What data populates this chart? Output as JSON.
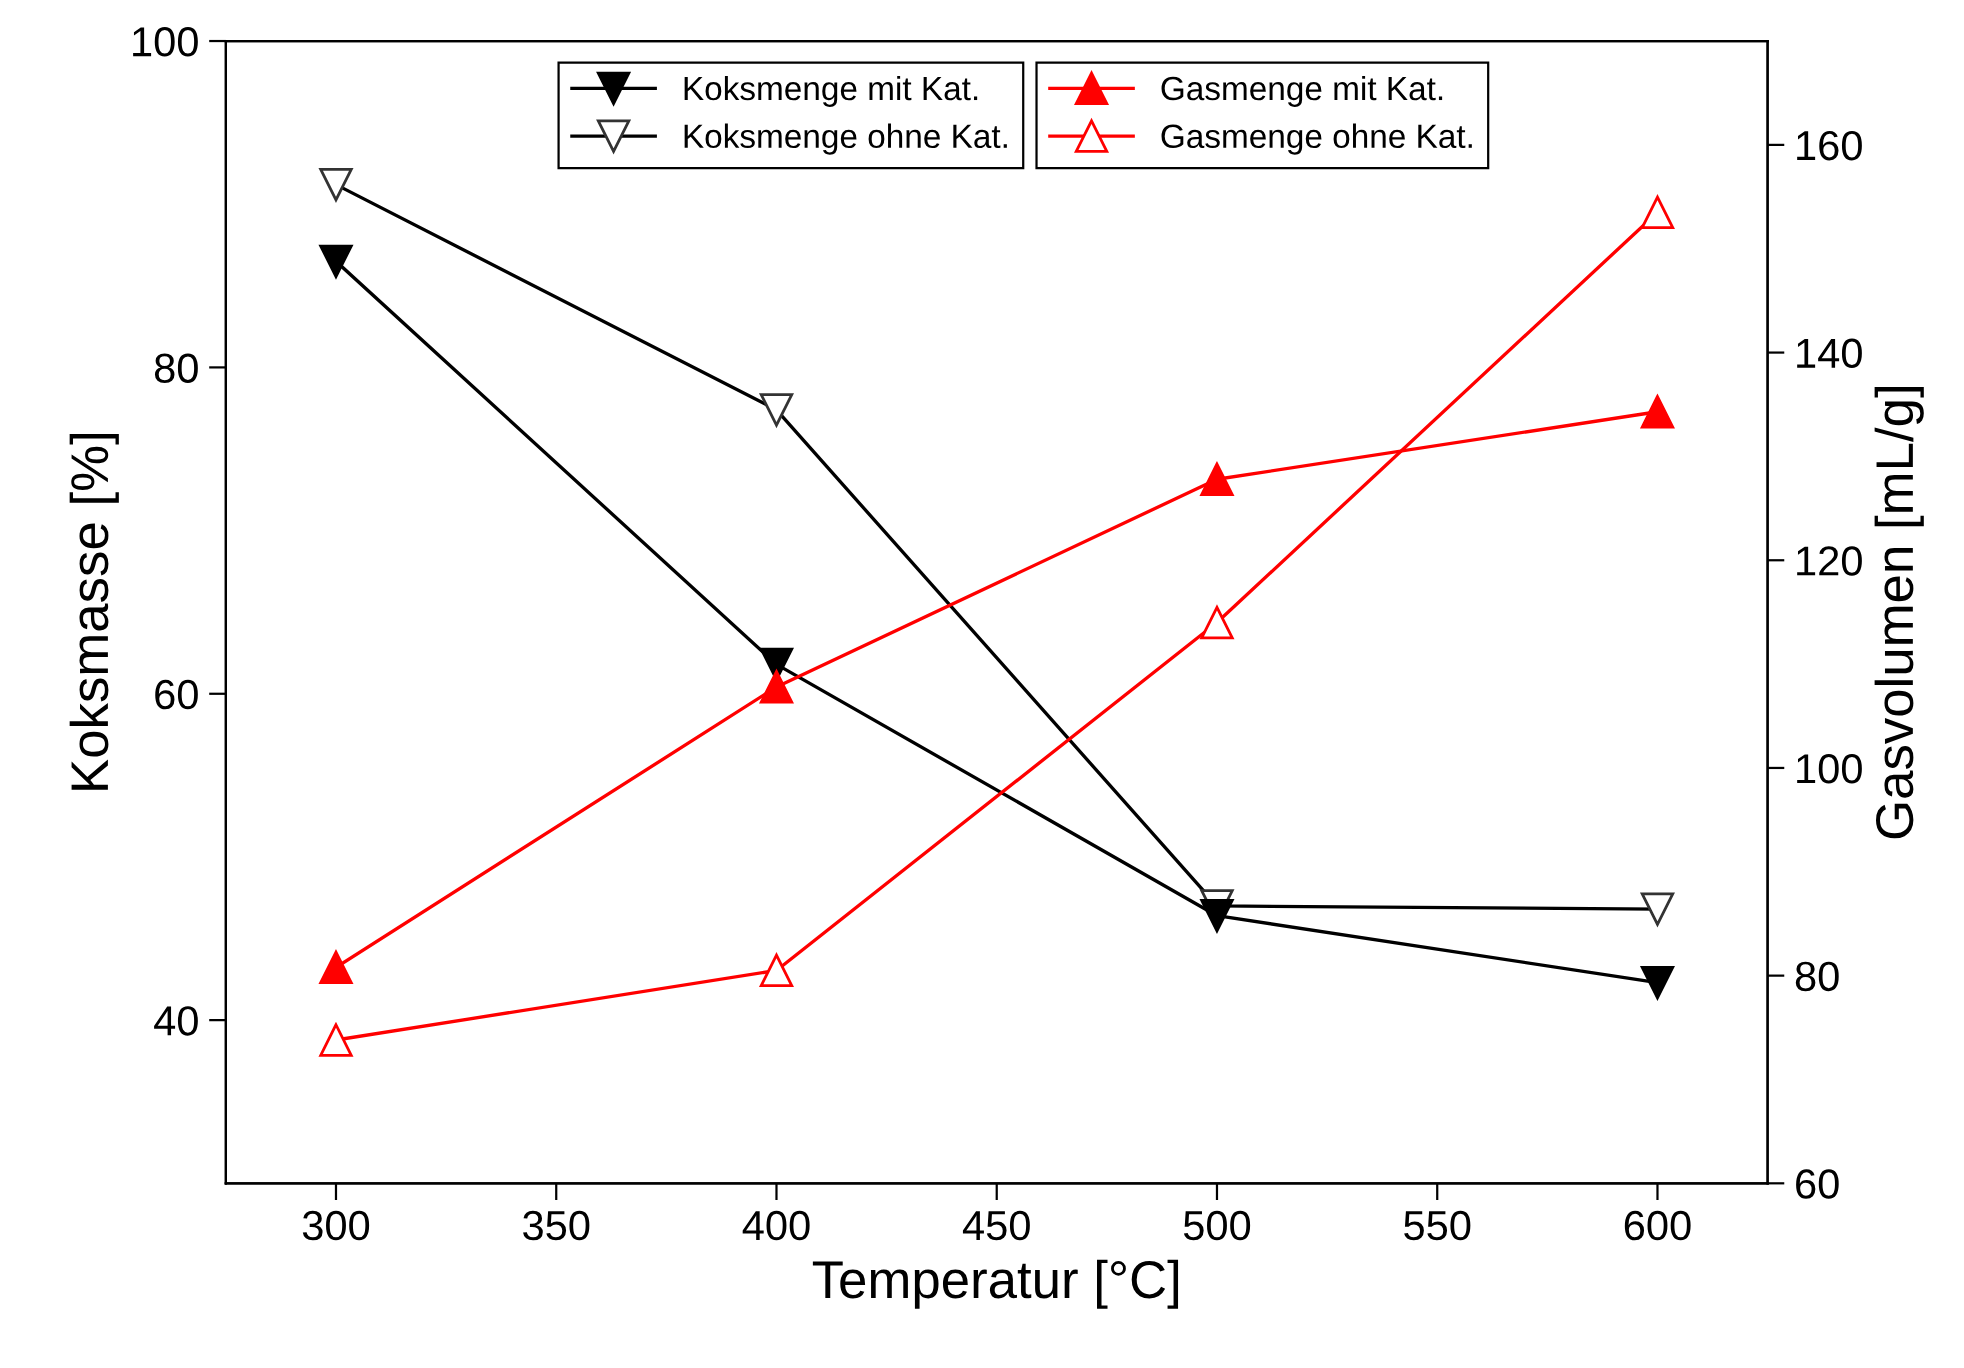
{
  "chart_data": {
    "type": "line",
    "xlabel": "Temperatur [°C]",
    "ylabel": "Koksmasse [%]",
    "y2label": "Gasvolumen [mL/g]",
    "x": [
      300,
      400,
      500,
      600
    ],
    "xlim": [
      275,
      625
    ],
    "xticks": [
      300,
      350,
      400,
      450,
      500,
      550,
      600
    ],
    "ylim": [
      30,
      100
    ],
    "yticks": [
      40,
      60,
      80,
      100
    ],
    "y2lim": [
      60,
      170
    ],
    "y2ticks": [
      60,
      80,
      100,
      120,
      140,
      160
    ],
    "grid": false,
    "legend": "top",
    "series": [
      {
        "name": "Koksmenge mit Kat.",
        "color": "#000000",
        "marker": "triangle-down",
        "values": [
          86.5,
          61.8,
          46.4,
          42.3
        ]
      },
      {
        "name": "Koksmenge ohne Kat.",
        "color": "#000000",
        "marker": "triangle-down-open",
        "values": [
          91.2,
          77.4,
          47.0,
          46.8
        ]
      },
      {
        "name": "Gasmenge mit Kat.",
        "color": "#ff0000",
        "marker": "triangle",
        "axis": "y2",
        "values": [
          80.8,
          107.8,
          127.8,
          134.3
        ]
      },
      {
        "name": "Gasmenge ohne Kat.",
        "color": "#ff0000",
        "marker": "triangle-open",
        "axis": "y2",
        "values": [
          73.8,
          80.5,
          114,
          153.5
        ]
      }
    ]
  }
}
